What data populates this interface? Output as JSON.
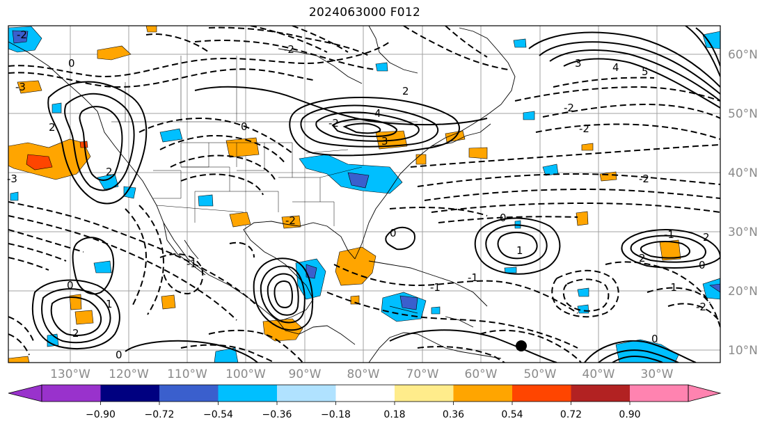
{
  "title": "2024063000 F012",
  "map": {
    "latitude_labels": [
      "60°N",
      "50°N",
      "40°N",
      "30°N",
      "20°N",
      "10°N"
    ],
    "longitude_labels": [
      "130°W",
      "120°W",
      "110°W",
      "100°W",
      "90°W",
      "80°W",
      "70°W",
      "60°W",
      "50°W",
      "40°W",
      "30°W"
    ],
    "contour_labels": [
      "-2",
      "-3",
      "0",
      "0",
      "-2",
      "2",
      "3",
      "4",
      "5",
      "-2",
      "-2",
      "-3",
      "2",
      "-2",
      "0",
      "0",
      "-1",
      "-2",
      "-1",
      "0",
      "1",
      "2",
      "0",
      "-1",
      "1",
      "0",
      "-2",
      "2",
      "2",
      "0",
      "-1",
      "-1",
      "2",
      "3",
      "-2",
      "4"
    ],
    "colors": {
      "land_outline": "#000000",
      "grid": "#a0a0a0",
      "contour": "#000000"
    }
  },
  "colorbar": {
    "ticks": [
      "−0.90",
      "−0.72",
      "−0.54",
      "−0.36",
      "−0.18",
      "0.18",
      "0.36",
      "0.54",
      "0.72",
      "0.90"
    ],
    "colors": [
      "#9932cc",
      "#000080",
      "#3a5fcd",
      "#00bfff",
      "#b0e2ff",
      "#ffffff",
      "#ffec8b",
      "#ffa500",
      "#ff4500",
      "#b22222",
      "#ff83b0"
    ]
  }
}
